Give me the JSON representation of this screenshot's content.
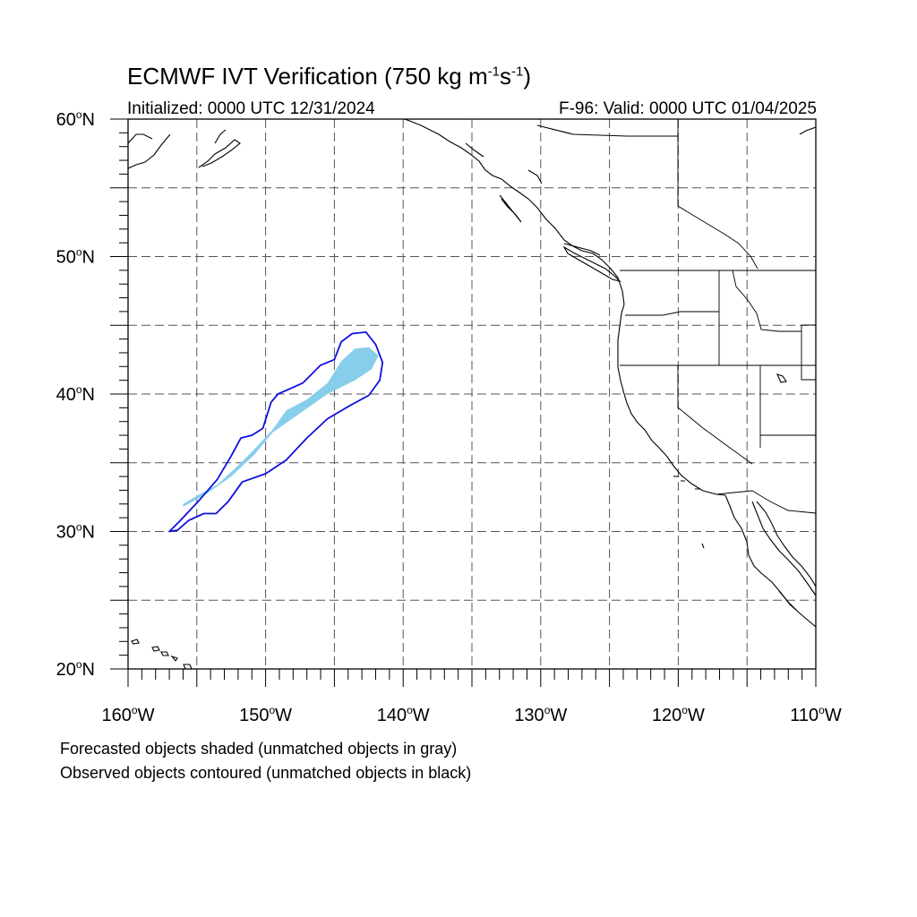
{
  "title": {
    "text_main": "ECMWF IVT Verification (750 kg m",
    "sup1": "-1",
    "text_mid": "s",
    "sup2": "-1",
    "text_end": ")"
  },
  "subtitle_left": "Initialized: 0000 UTC 12/31/2024",
  "subtitle_right": "F-96: Valid: 0000 UTC 01/04/2025",
  "notes": {
    "line1": "Forecasted objects shaded (unmatched objects in gray)",
    "line2": "Observed objects contoured (unmatched objects in black)"
  },
  "map": {
    "lat_range": [
      20,
      60
    ],
    "lon_range": [
      -160,
      -110
    ],
    "lat_labels": [
      {
        "value": 60,
        "text": "60",
        "suffix": "N"
      },
      {
        "value": 50,
        "text": "50",
        "suffix": "N"
      },
      {
        "value": 40,
        "text": "40",
        "suffix": "N"
      },
      {
        "value": 30,
        "text": "30",
        "suffix": "N"
      },
      {
        "value": 20,
        "text": "20",
        "suffix": "N"
      }
    ],
    "lon_labels": [
      {
        "value": -160,
        "text": "160",
        "suffix": "W"
      },
      {
        "value": -150,
        "text": "150",
        "suffix": "W"
      },
      {
        "value": -140,
        "text": "140",
        "suffix": "W"
      },
      {
        "value": -130,
        "text": "130",
        "suffix": "W"
      },
      {
        "value": -120,
        "text": "120",
        "suffix": "W"
      },
      {
        "value": -110,
        "text": "110",
        "suffix": "W"
      }
    ],
    "gridline_spacing_deg": 5,
    "colors": {
      "forecast_fill": "#87ceeb",
      "observed_contour": "#1010e0",
      "coastline": "#000000",
      "grid": "#555555"
    },
    "forecast_object": [
      [
        -156.0,
        32.0
      ],
      [
        -155.0,
        32.6
      ],
      [
        -153.5,
        33.4
      ],
      [
        -152.0,
        34.8
      ],
      [
        -150.8,
        36.0
      ],
      [
        -149.5,
        37.4
      ],
      [
        -148.5,
        38.8
      ],
      [
        -147.0,
        39.6
      ],
      [
        -145.5,
        40.8
      ],
      [
        -144.5,
        42.4
      ],
      [
        -143.5,
        43.3
      ],
      [
        -142.5,
        43.4
      ],
      [
        -141.8,
        42.8
      ],
      [
        -142.3,
        41.8
      ],
      [
        -143.5,
        41.0
      ],
      [
        -145.5,
        40.0
      ],
      [
        -147.5,
        38.6
      ],
      [
        -149.5,
        37.2
      ],
      [
        -150.8,
        35.6
      ],
      [
        -152.5,
        34.0
      ],
      [
        -154.5,
        32.6
      ],
      [
        -156.0,
        31.8
      ]
    ],
    "observed_object": [
      [
        -157.0,
        30.0
      ],
      [
        -156.4,
        30.1
      ],
      [
        -155.6,
        30.8
      ],
      [
        -154.5,
        31.3
      ],
      [
        -153.6,
        31.3
      ],
      [
        -152.7,
        32.2
      ],
      [
        -151.7,
        33.6
      ],
      [
        -150.0,
        34.2
      ],
      [
        -148.5,
        35.2
      ],
      [
        -147.0,
        36.8
      ],
      [
        -145.5,
        38.2
      ],
      [
        -143.8,
        39.2
      ],
      [
        -142.5,
        39.9
      ],
      [
        -141.7,
        41.0
      ],
      [
        -141.5,
        42.3
      ],
      [
        -142.0,
        43.6
      ],
      [
        -142.7,
        44.5
      ],
      [
        -143.7,
        44.4
      ],
      [
        -144.5,
        43.8
      ],
      [
        -145.0,
        42.5
      ],
      [
        -146.0,
        42.1
      ],
      [
        -147.3,
        40.8
      ],
      [
        -148.2,
        40.4
      ],
      [
        -149.1,
        40.0
      ],
      [
        -149.6,
        39.4
      ],
      [
        -150.2,
        37.5
      ],
      [
        -151.0,
        37.0
      ],
      [
        -151.8,
        36.8
      ],
      [
        -152.5,
        35.5
      ],
      [
        -153.5,
        33.8
      ],
      [
        -154.8,
        32.3
      ],
      [
        -156.2,
        30.8
      ],
      [
        -157.0,
        30.0
      ]
    ]
  }
}
